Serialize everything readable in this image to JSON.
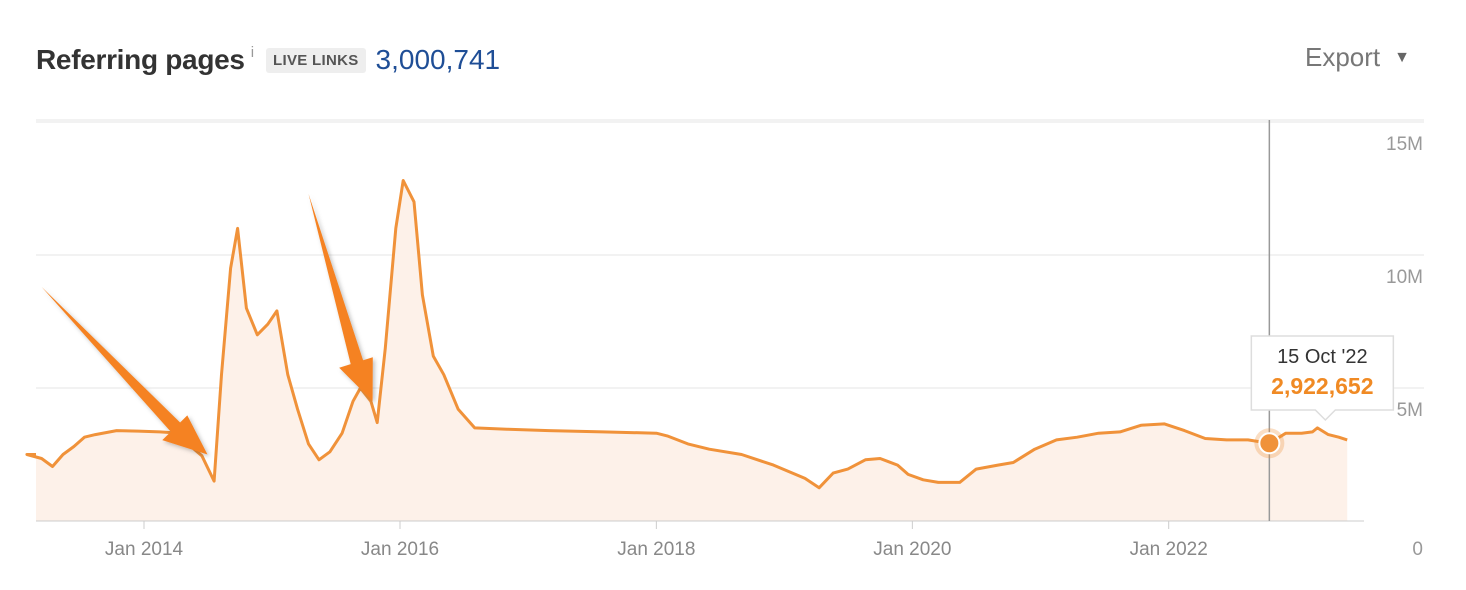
{
  "header": {
    "title": "Referring pages",
    "info_icon": "info-icon",
    "badge": "LIVE LINKS",
    "total": "3,000,741"
  },
  "export": {
    "label": "Export",
    "icon": "caret-down-icon"
  },
  "colors": {
    "line": "#f0923a",
    "area": "#fdf1e9",
    "arrow": "#f58220",
    "grid": "#e6e6e6",
    "tooltip_value": "#f08a24"
  },
  "tooltip": {
    "date": "15 Oct '22",
    "value": "2,922,652"
  },
  "chart_data": {
    "type": "area",
    "title": "Referring pages",
    "xlabel": "",
    "ylabel": "",
    "x_ticks": [
      "Jan 2014",
      "Jan 2016",
      "Jan 2018",
      "Jan 2020",
      "Jan 2022"
    ],
    "y_ticks": [
      "0",
      "5M",
      "10M",
      "15M"
    ],
    "ylim": [
      0,
      15000000
    ],
    "xlim": [
      "2013-02-01",
      "2023-06-01"
    ],
    "grid": true,
    "series": [
      {
        "values": [
          [
            "2013-02-01",
            2500000
          ],
          [
            "2013-03-15",
            2350000
          ],
          [
            "2013-04-15",
            2050000
          ],
          [
            "2013-05-15",
            2500000
          ],
          [
            "2013-06-15",
            2800000
          ],
          [
            "2013-07-15",
            3150000
          ],
          [
            "2013-08-15",
            3250000
          ],
          [
            "2013-10-15",
            3400000
          ],
          [
            "2013-12-15",
            3380000
          ],
          [
            "2014-02-15",
            3350000
          ],
          [
            "2014-04-15",
            3300000
          ],
          [
            "2014-05-15",
            2800000
          ],
          [
            "2014-06-15",
            2450000
          ],
          [
            "2014-07-20",
            1500000
          ],
          [
            "2014-08-10",
            5500000
          ],
          [
            "2014-09-05",
            9500000
          ],
          [
            "2014-09-25",
            11000000
          ],
          [
            "2014-10-20",
            8000000
          ],
          [
            "2014-11-20",
            7000000
          ],
          [
            "2014-12-20",
            7400000
          ],
          [
            "2015-01-15",
            7900000
          ],
          [
            "2015-02-15",
            5500000
          ],
          [
            "2015-03-15",
            4200000
          ],
          [
            "2015-04-15",
            2900000
          ],
          [
            "2015-05-15",
            2300000
          ],
          [
            "2015-06-15",
            2600000
          ],
          [
            "2015-07-20",
            3300000
          ],
          [
            "2015-08-20",
            4500000
          ],
          [
            "2015-09-10",
            5000000
          ],
          [
            "2015-10-10",
            4500000
          ],
          [
            "2015-10-28",
            3700000
          ],
          [
            "2015-11-20",
            6500000
          ],
          [
            "2015-12-20",
            11000000
          ],
          [
            "2016-01-10",
            12800000
          ],
          [
            "2016-02-10",
            12000000
          ],
          [
            "2016-03-05",
            8500000
          ],
          [
            "2016-04-05",
            6200000
          ],
          [
            "2016-05-05",
            5500000
          ],
          [
            "2016-06-15",
            4200000
          ],
          [
            "2016-08-01",
            3500000
          ],
          [
            "2016-11-01",
            3450000
          ],
          [
            "2017-03-01",
            3400000
          ],
          [
            "2017-08-01",
            3350000
          ],
          [
            "2018-01-01",
            3300000
          ],
          [
            "2018-02-01",
            3200000
          ],
          [
            "2018-04-01",
            2900000
          ],
          [
            "2018-06-01",
            2700000
          ],
          [
            "2018-09-01",
            2500000
          ],
          [
            "2018-12-01",
            2100000
          ],
          [
            "2019-03-01",
            1600000
          ],
          [
            "2019-04-10",
            1250000
          ],
          [
            "2019-05-20",
            1800000
          ],
          [
            "2019-07-01",
            1950000
          ],
          [
            "2019-08-20",
            2300000
          ],
          [
            "2019-10-01",
            2350000
          ],
          [
            "2019-11-20",
            2100000
          ],
          [
            "2019-12-20",
            1750000
          ],
          [
            "2020-02-01",
            1550000
          ],
          [
            "2020-03-15",
            1450000
          ],
          [
            "2020-05-15",
            1450000
          ],
          [
            "2020-07-01",
            1950000
          ],
          [
            "2020-09-01",
            2100000
          ],
          [
            "2020-10-15",
            2200000
          ],
          [
            "2020-12-15",
            2700000
          ],
          [
            "2021-02-15",
            3050000
          ],
          [
            "2021-04-15",
            3150000
          ],
          [
            "2021-06-15",
            3300000
          ],
          [
            "2021-08-15",
            3350000
          ],
          [
            "2021-10-15",
            3600000
          ],
          [
            "2021-12-20",
            3650000
          ],
          [
            "2022-02-15",
            3400000
          ],
          [
            "2022-04-15",
            3100000
          ],
          [
            "2022-06-15",
            3050000
          ],
          [
            "2022-08-15",
            3050000
          ],
          [
            "2022-10-15",
            2922652
          ],
          [
            "2022-12-01",
            3300000
          ],
          [
            "2023-01-15",
            3300000
          ],
          [
            "2023-02-15",
            3350000
          ],
          [
            "2023-03-01",
            3500000
          ],
          [
            "2023-04-01",
            3250000
          ],
          [
            "2023-05-01",
            3150000
          ],
          [
            "2023-05-25",
            3050000
          ]
        ]
      }
    ],
    "annotations": [
      {
        "type": "arrow",
        "from": [
          "2013-03-15",
          8800000
        ],
        "to": [
          "2014-07-01",
          2500000
        ]
      },
      {
        "type": "arrow",
        "from": [
          "2015-04-15",
          12300000
        ],
        "to": [
          "2015-10-15",
          4500000
        ]
      }
    ],
    "highlight": {
      "date": "2022-10-15",
      "value": 2922652,
      "label_date": "15 Oct '22",
      "label_value": "2,922,652"
    }
  }
}
